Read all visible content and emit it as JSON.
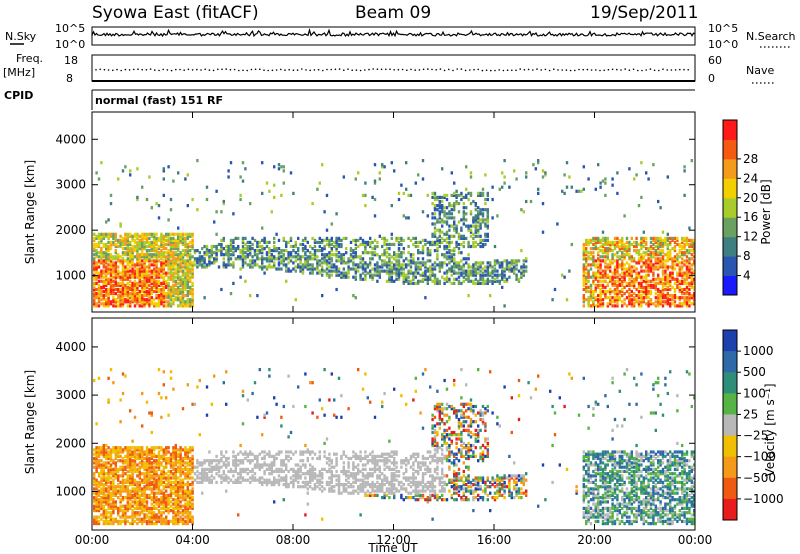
{
  "header": {
    "station": "Syowa East (fitACF)",
    "beam": "Beam 09",
    "date": "19/Sep/2011"
  },
  "top_panels": {
    "nsky_label": "N.Sky",
    "nsearch_label": "N.Search",
    "nsky_ticks": [
      "10^5",
      "10^0"
    ],
    "nsearch_ticks": [
      "10^5",
      "10^0"
    ],
    "freq_label": "Freq.",
    "freq_unit": "[MHz]",
    "freq_ticks": [
      "18",
      "8"
    ],
    "nave_label": "Nave",
    "nave_ticks": [
      "60",
      "0"
    ],
    "cpid_label": "CPID",
    "cpid_text": "normal (fast) 151 RF"
  },
  "chart_data": [
    {
      "type": "heatmap",
      "name": "power",
      "ylabel": "Slant Range [km]",
      "xlabel": "",
      "yticks": [
        1000,
        2000,
        3000,
        4000
      ],
      "ylim": [
        200,
        4600
      ],
      "xlim": [
        0,
        24
      ],
      "colorbar_label": "Power [dB]",
      "colorbar_ticks": [
        "4",
        "8",
        "12",
        "16",
        "20",
        "24",
        "28"
      ],
      "colors": [
        "#1a1aff",
        "#2a55b0",
        "#3f7f82",
        "#6aa060",
        "#a8cd2a",
        "#f2d000",
        "#f59b1a",
        "#f55a10",
        "#ff1a1a"
      ]
    },
    {
      "type": "heatmap",
      "name": "velocity",
      "ylabel": "Slant Range [km]",
      "xlabel": "Time UT",
      "yticks": [
        1000,
        2000,
        3000,
        4000
      ],
      "ylim": [
        200,
        4600
      ],
      "xlim": [
        0,
        24
      ],
      "xticks": [
        "00:00",
        "04:00",
        "08:00",
        "12:00",
        "16:00",
        "20:00",
        "00:00"
      ],
      "colorbar_label": "Velocity [m s⁻¹]",
      "colorbar_ticks": [
        "1000",
        "500",
        "100",
        "25",
        "−25",
        "−100",
        "−500",
        "−1000"
      ],
      "colors": [
        "#1e3fae",
        "#2e6aa8",
        "#2e8e7a",
        "#55b444",
        "#b8b8b8",
        "#f0c000",
        "#f59a18",
        "#f05a10",
        "#e81c1c"
      ]
    }
  ]
}
